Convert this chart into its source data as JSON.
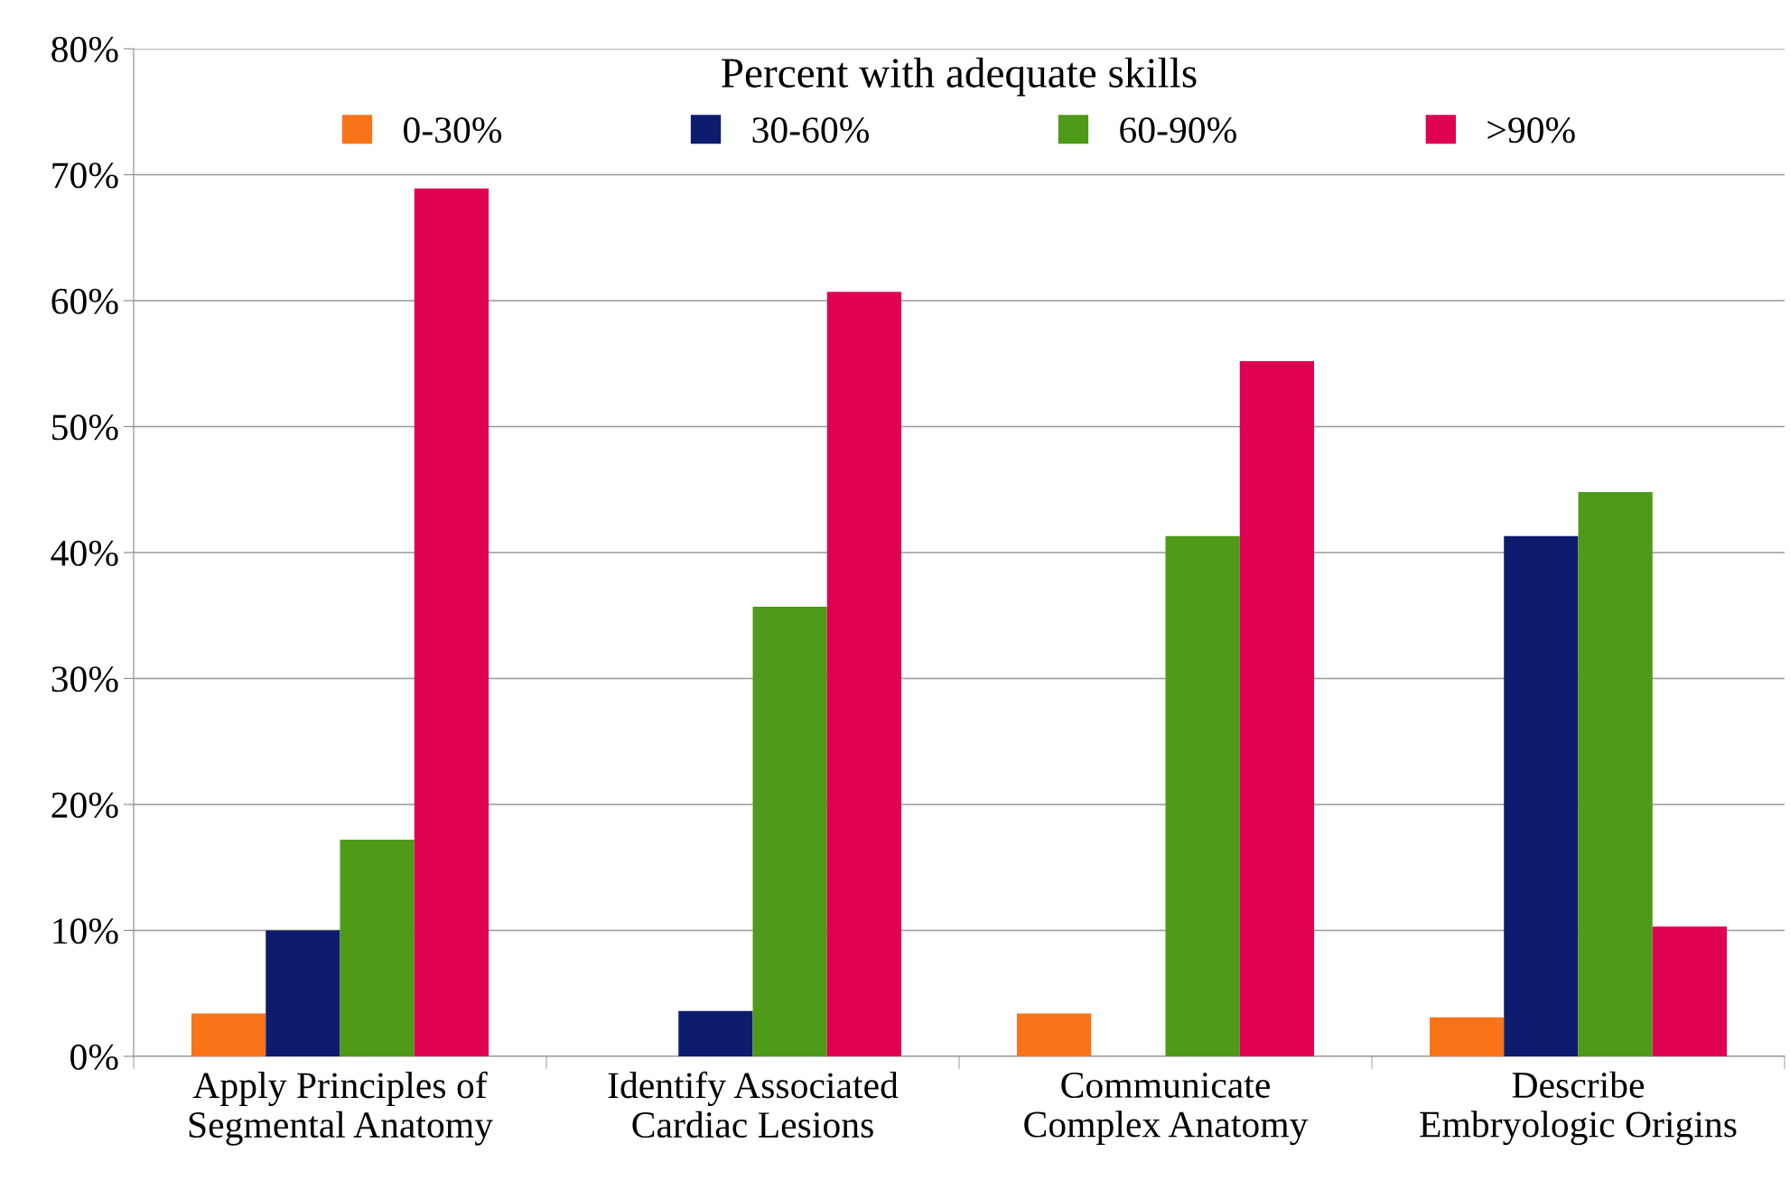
{
  "chart_data": {
    "type": "bar",
    "legend_title": "Percent with adequate skills",
    "categories": [
      "Apply Principles of\nSegmental Anatomy",
      "Identify Associated\nCardiac Lesions",
      "Communicate\nComplex Anatomy",
      "Describe\nEmbryologic Origins"
    ],
    "series": [
      {
        "name": "0-30%",
        "color": "#f97418",
        "values": [
          3.4,
          0,
          3.4,
          3.1
        ]
      },
      {
        "name": "30-60%",
        "color": "#0e1c6e",
        "values": [
          10.0,
          3.6,
          0,
          41.3
        ]
      },
      {
        "name": "60-90%",
        "color": "#4f9a19",
        "values": [
          17.2,
          35.7,
          41.3,
          44.8
        ]
      },
      {
        "name": ">90%",
        "color": "#e00052",
        "values": [
          68.9,
          60.7,
          55.2,
          10.3
        ]
      }
    ],
    "ylim": [
      0,
      80
    ],
    "yticks": [
      {
        "value": 0,
        "label": "0%"
      },
      {
        "value": 10,
        "label": "10%"
      },
      {
        "value": 20,
        "label": "20%"
      },
      {
        "value": 30,
        "label": "30%"
      },
      {
        "value": 40,
        "label": "40%"
      },
      {
        "value": 50,
        "label": "50%"
      },
      {
        "value": 60,
        "label": "60%"
      },
      {
        "value": 70,
        "label": "70%"
      },
      {
        "value": 80,
        "label": "80%"
      }
    ],
    "grid": "y",
    "legend": "top"
  }
}
